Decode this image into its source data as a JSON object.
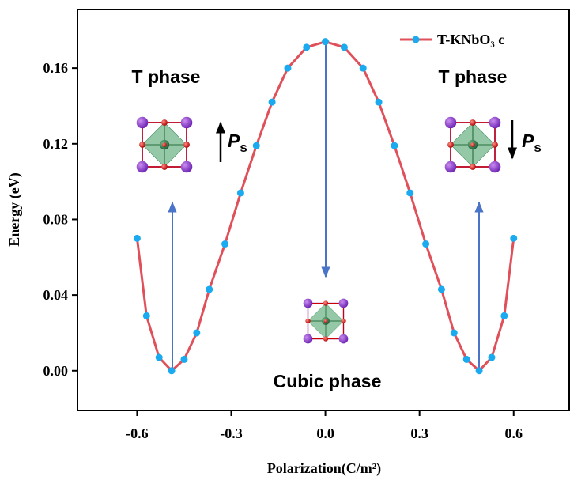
{
  "chart_data": {
    "type": "line",
    "x_label": "Polarization(C/m²)",
    "y_label": "Energy (eV)",
    "x": [
      -0.6,
      -0.57,
      -0.53,
      -0.49,
      -0.45,
      -0.41,
      -0.37,
      -0.32,
      -0.27,
      -0.22,
      -0.17,
      -0.12,
      -0.06,
      0,
      0.06,
      0.12,
      0.17,
      0.22,
      0.27,
      0.32,
      0.37,
      0.41,
      0.45,
      0.49,
      0.53,
      0.57,
      0.6
    ],
    "series": [
      {
        "name": "T-KNbO₃ c",
        "color": "#e0505a",
        "marker_color": "#19aaf0",
        "values": [
          0.07,
          0.029,
          0.007,
          0,
          0.006,
          0.02,
          0.043,
          0.067,
          0.094,
          0.119,
          0.142,
          0.16,
          0.171,
          0.174,
          0.171,
          0.16,
          0.142,
          0.119,
          0.094,
          0.067,
          0.043,
          0.02,
          0.006,
          0,
          0.007,
          0.029,
          0.07
        ]
      }
    ],
    "xlim": [
      -0.79,
      0.777
    ],
    "ylim": [
      -0.021,
      0.191
    ],
    "xticks": [
      {
        "value": -0.6,
        "label": "-0.6"
      },
      {
        "value": -0.3,
        "label": "-0.3"
      },
      {
        "value": 0,
        "label": "0.0"
      },
      {
        "value": 0.3,
        "label": "0.3"
      },
      {
        "value": 0.6,
        "label": "0.6"
      }
    ],
    "yticks": [
      {
        "value": 0,
        "label": "0.00"
      },
      {
        "value": 0.04,
        "label": "0.04"
      },
      {
        "value": 0.08,
        "label": "0.08"
      },
      {
        "value": 0.12,
        "label": "0.12"
      },
      {
        "value": 0.16,
        "label": "0.16"
      }
    ],
    "legend": "upper right",
    "annotations": [
      "T phase",
      "T phase",
      "Cubic phase"
    ],
    "polarization_labels": [
      {
        "main": "P",
        "sub": "s"
      },
      {
        "main": "P",
        "sub": "s"
      }
    ]
  }
}
